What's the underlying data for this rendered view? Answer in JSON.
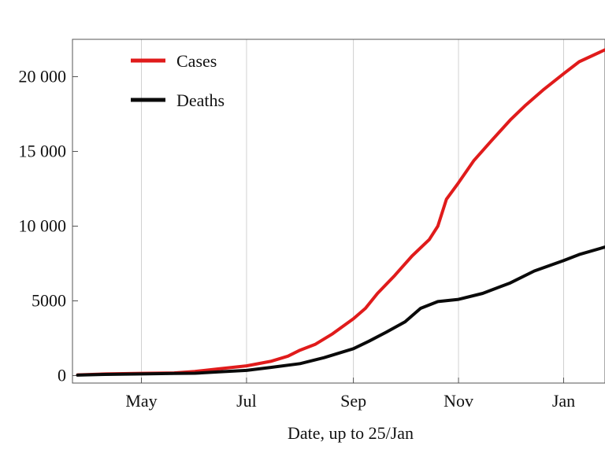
{
  "chart_data": {
    "type": "line",
    "title": "",
    "xlabel": "Date, up to 25/Jan",
    "ylabel": "",
    "x_tick_labels": [
      "May",
      "Jul",
      "Sep",
      "Nov",
      "Jan"
    ],
    "x_tick_dates": [
      "2014-05-01",
      "2014-07-01",
      "2014-09-01",
      "2014-11-01",
      "2015-01-01"
    ],
    "x_range": [
      "2014-03-22",
      "2015-01-25"
    ],
    "y_tick_labels": [
      "0",
      "5000",
      "10 000",
      "15 000",
      "20 000"
    ],
    "y_tick_values": [
      0,
      5000,
      10000,
      15000,
      20000
    ],
    "ylim": [
      -500,
      22500
    ],
    "grid": "vertical",
    "legend_position": "top-left",
    "series": [
      {
        "name": "Cases",
        "color": "#e01b1b",
        "points": [
          [
            "2014-03-25",
            50
          ],
          [
            "2014-04-10",
            110
          ],
          [
            "2014-05-01",
            150
          ],
          [
            "2014-05-20",
            180
          ],
          [
            "2014-06-01",
            280
          ],
          [
            "2014-06-15",
            450
          ],
          [
            "2014-07-01",
            650
          ],
          [
            "2014-07-15",
            950
          ],
          [
            "2014-07-25",
            1300
          ],
          [
            "2014-08-01",
            1700
          ],
          [
            "2014-08-10",
            2100
          ],
          [
            "2014-08-20",
            2800
          ],
          [
            "2014-09-01",
            3800
          ],
          [
            "2014-09-08",
            4500
          ],
          [
            "2014-09-15",
            5500
          ],
          [
            "2014-09-25",
            6700
          ],
          [
            "2014-10-05",
            8000
          ],
          [
            "2014-10-15",
            9100
          ],
          [
            "2014-10-20",
            10000
          ],
          [
            "2014-10-25",
            11800
          ],
          [
            "2014-11-01",
            12900
          ],
          [
            "2014-11-10",
            14400
          ],
          [
            "2014-11-20",
            15700
          ],
          [
            "2014-12-01",
            17100
          ],
          [
            "2014-12-10",
            18100
          ],
          [
            "2014-12-20",
            19100
          ],
          [
            "2015-01-01",
            20200
          ],
          [
            "2015-01-10",
            21000
          ],
          [
            "2015-01-25",
            21800
          ]
        ]
      },
      {
        "name": "Deaths",
        "color": "#0a0a0a",
        "points": [
          [
            "2014-03-25",
            30
          ],
          [
            "2014-04-10",
            80
          ],
          [
            "2014-05-01",
            110
          ],
          [
            "2014-05-20",
            140
          ],
          [
            "2014-06-01",
            160
          ],
          [
            "2014-06-15",
            250
          ],
          [
            "2014-07-01",
            350
          ],
          [
            "2014-07-15",
            550
          ],
          [
            "2014-08-01",
            800
          ],
          [
            "2014-08-15",
            1200
          ],
          [
            "2014-09-01",
            1800
          ],
          [
            "2014-09-10",
            2300
          ],
          [
            "2014-09-20",
            2900
          ],
          [
            "2014-10-01",
            3600
          ],
          [
            "2014-10-10",
            4500
          ],
          [
            "2014-10-20",
            4950
          ],
          [
            "2014-11-01",
            5100
          ],
          [
            "2014-11-15",
            5500
          ],
          [
            "2014-12-01",
            6200
          ],
          [
            "2014-12-15",
            7000
          ],
          [
            "2015-01-01",
            7700
          ],
          [
            "2015-01-10",
            8100
          ],
          [
            "2015-01-25",
            8600
          ]
        ]
      }
    ]
  }
}
